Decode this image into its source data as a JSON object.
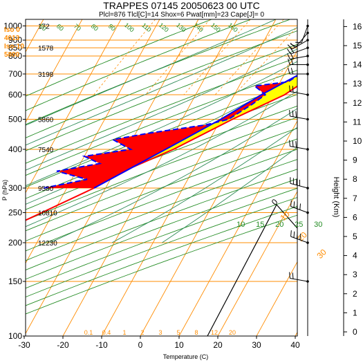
{
  "header": {
    "title": "TRAPPES 07145 20050623 00 UTC",
    "subtitle": "Plcl=876 Tlcl[C]=14 Shox=6 Pwat[mm]=23 Cape[J]= 0"
  },
  "side_info": [
    {
      "text": "Iso 0",
      "color": "#ff8c00"
    },
    {
      "text": "4013",
      "color": "#ff8c00"
    },
    {
      "text": "Iso-10",
      "color": "#ff8c00"
    },
    {
      "text": "5800",
      "color": "#ff8c00"
    }
  ],
  "chart_data": {
    "type": "skew-t",
    "xlabel": "Temperature (C)",
    "ylabel": "P (hPa)",
    "y2label": "Height (Km)",
    "xlim": [
      -35,
      47
    ],
    "plim": [
      1050,
      100
    ],
    "x_ticks": [
      -30,
      -20,
      -10,
      0,
      10,
      20,
      30,
      40
    ],
    "p_ticks": [
      100,
      150,
      200,
      250,
      300,
      400,
      500,
      600,
      700,
      800,
      850,
      900,
      1000
    ],
    "height_ticks": [
      0,
      1,
      2,
      3,
      4,
      5,
      6,
      7,
      8,
      9,
      10,
      11,
      12,
      13,
      14,
      15,
      16
    ],
    "height_labels": [
      {
        "p": 1000,
        "text": "172"
      },
      {
        "p": 850,
        "text": "1578"
      },
      {
        "p": 700,
        "text": "3198"
      },
      {
        "p": 500,
        "text": "5860"
      },
      {
        "p": 400,
        "text": "7540"
      },
      {
        "p": 300,
        "text": "9580"
      },
      {
        "p": 250,
        "text": "10810"
      },
      {
        "p": 200,
        "text": "12230"
      }
    ],
    "mixing_ratio_labels": [
      "0.1",
      "0.4",
      "1",
      "2",
      "3",
      "5",
      "8",
      "12",
      "20"
    ],
    "skew_labels": [
      {
        "t": 10,
        "text": "10"
      },
      {
        "t": 15,
        "text": "15"
      },
      {
        "t": 20,
        "text": "20"
      },
      {
        "t": 25,
        "text": "25"
      },
      {
        "t": 30,
        "text": "30"
      }
    ],
    "adiabat_labels": [
      "50",
      "60",
      "70",
      "80",
      "90",
      "100",
      "110",
      "120",
      "130",
      "140",
      "150",
      "160"
    ],
    "isotherm_labels": [
      "0",
      "10",
      "20",
      "30"
    ],
    "temperature": [
      {
        "p": 1000,
        "t": 26
      },
      {
        "p": 950,
        "t": 23
      },
      {
        "p": 925,
        "t": 21
      },
      {
        "p": 850,
        "t": 18
      },
      {
        "p": 800,
        "t": 14
      },
      {
        "p": 750,
        "t": 10
      },
      {
        "p": 700,
        "t": 8
      },
      {
        "p": 600,
        "t": 3
      },
      {
        "p": 500,
        "t": -7
      },
      {
        "p": 400,
        "t": -18
      },
      {
        "p": 350,
        "t": -26
      },
      {
        "p": 300,
        "t": -33
      },
      {
        "p": 250,
        "t": -43
      },
      {
        "p": 220,
        "t": -50
      },
      {
        "p": 200,
        "t": -52
      },
      {
        "p": 180,
        "t": -52
      },
      {
        "p": 150,
        "t": -52
      }
    ],
    "dewpoint": [
      {
        "p": 1000,
        "t": 21
      },
      {
        "p": 975,
        "t": 17
      },
      {
        "p": 950,
        "t": 15
      },
      {
        "p": 925,
        "t": 15
      },
      {
        "p": 900,
        "t": 14
      },
      {
        "p": 850,
        "t": 11
      },
      {
        "p": 800,
        "t": 13
      },
      {
        "p": 780,
        "t": 6
      },
      {
        "p": 760,
        "t": 9
      },
      {
        "p": 750,
        "t": 3
      },
      {
        "p": 720,
        "t": 6
      },
      {
        "p": 700,
        "t": 4
      },
      {
        "p": 660,
        "t": 2
      },
      {
        "p": 640,
        "t": -6
      },
      {
        "p": 620,
        "t": -4
      },
      {
        "p": 600,
        "t": -2
      },
      {
        "p": 560,
        "t": -4
      },
      {
        "p": 500,
        "t": -8
      },
      {
        "p": 480,
        "t": -13
      },
      {
        "p": 450,
        "t": -27
      },
      {
        "p": 430,
        "t": -35
      },
      {
        "p": 400,
        "t": -29
      },
      {
        "p": 380,
        "t": -40
      },
      {
        "p": 360,
        "t": -35
      },
      {
        "p": 340,
        "t": -45
      },
      {
        "p": 320,
        "t": -36
      },
      {
        "p": 300,
        "t": -46
      }
    ],
    "parcel": [
      {
        "p": 1000,
        "t": 22
      },
      {
        "p": 876,
        "t": 14
      },
      {
        "p": 800,
        "t": 10
      },
      {
        "p": 700,
        "t": 4
      },
      {
        "p": 600,
        "t": -3
      },
      {
        "p": 500,
        "t": -10
      },
      {
        "p": 400,
        "t": -20
      },
      {
        "p": 300,
        "t": -33
      }
    ],
    "cape_fill": "#ffff00",
    "cin_fill": "#ff0000",
    "colors": {
      "temperature": "#ff0000",
      "dewpoint": "#0000ff",
      "parcel": "#0000ff",
      "isobar": "#ff8c00",
      "isotherm": "#ff8c00",
      "dry_adiabat": "#228b22",
      "moist_adiabat": "#2e8b57",
      "mixing_ratio": "#ff8c00",
      "frame": "#000000"
    },
    "wind": [
      {
        "p": 1000,
        "dir": 200,
        "spd": 5
      },
      {
        "p": 950,
        "dir": 220,
        "spd": 10
      },
      {
        "p": 900,
        "dir": 240,
        "spd": 15
      },
      {
        "p": 850,
        "dir": 250,
        "spd": 15
      },
      {
        "p": 800,
        "dir": 260,
        "spd": 15
      },
      {
        "p": 750,
        "dir": 270,
        "spd": 15
      },
      {
        "p": 700,
        "dir": 270,
        "spd": 20
      },
      {
        "p": 600,
        "dir": 280,
        "spd": 20
      },
      {
        "p": 500,
        "dir": 280,
        "spd": 25
      },
      {
        "p": 400,
        "dir": 280,
        "spd": 30
      },
      {
        "p": 300,
        "dir": 285,
        "spd": 35
      },
      {
        "p": 250,
        "dir": 290,
        "spd": 40
      },
      {
        "p": 200,
        "dir": 290,
        "spd": 40
      },
      {
        "p": 150,
        "dir": 280,
        "spd": 20
      }
    ]
  }
}
